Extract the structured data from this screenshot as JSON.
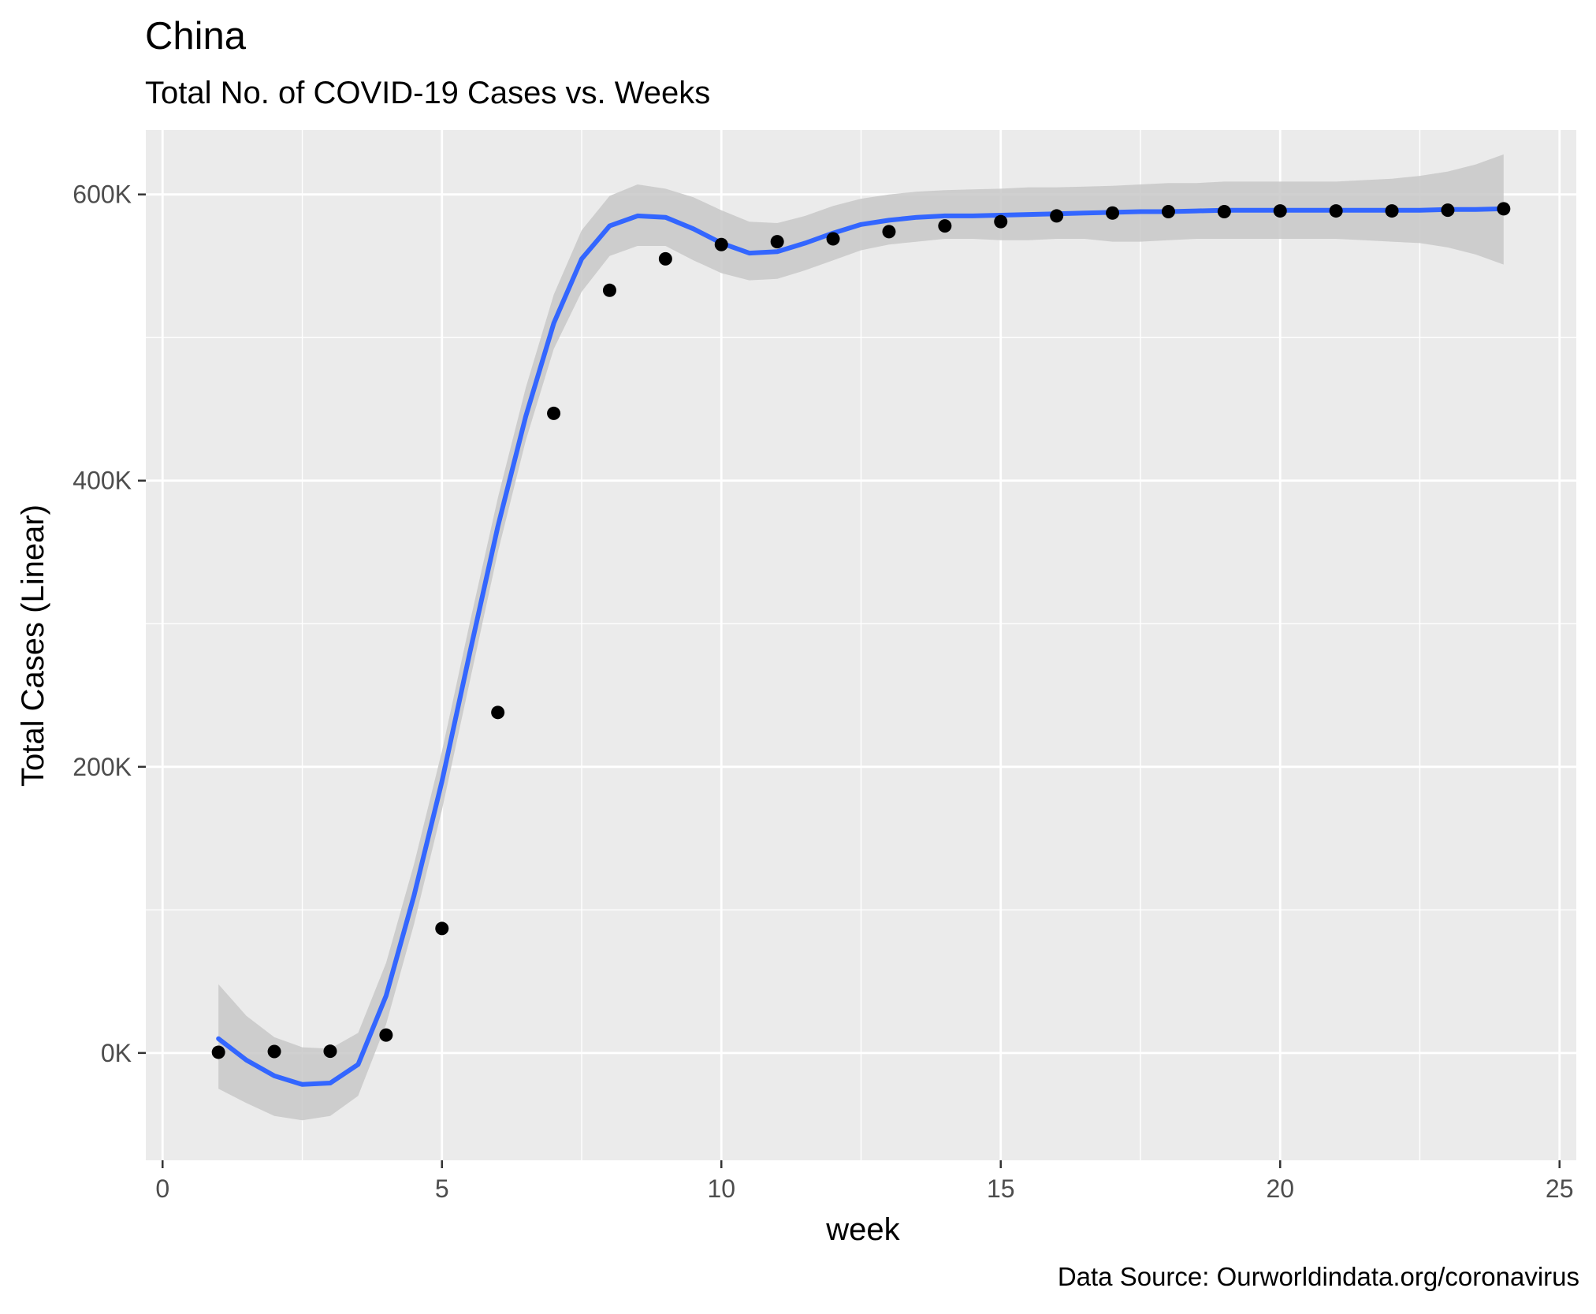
{
  "chart_data": {
    "type": "scatter",
    "title": "China",
    "subtitle": "Total No. of COVID-19 Cases vs. Weeks",
    "xlabel": "week",
    "ylabel": "Total Cases (Linear)",
    "caption": "Data Source: Ourworldindata.org/coronavirus",
    "xlim": [
      -0.3,
      25.3
    ],
    "ylim": [
      -75000,
      645000
    ],
    "x_ticks": [
      0,
      5,
      10,
      15,
      20,
      25
    ],
    "x_tick_labels": [
      "0",
      "5",
      "10",
      "15",
      "20",
      "25"
    ],
    "y_ticks": [
      0,
      200000,
      400000,
      600000
    ],
    "y_tick_labels": [
      "0K",
      "200K",
      "400K",
      "600K"
    ],
    "grid": true,
    "legend": "none",
    "colors": {
      "panel_bg": "#ebebeb",
      "grid": "#ffffff",
      "points": "#000000",
      "smooth_line": "#3366ff",
      "confidence_band": "#c8c8c8",
      "text": "#000000",
      "tick_text": "#4d4d4d"
    },
    "series": [
      {
        "kind": "points",
        "x": [
          1,
          2,
          3,
          4,
          5,
          6,
          7,
          8,
          9,
          10,
          11,
          12,
          13,
          14,
          15,
          16,
          17,
          18,
          19,
          20,
          21,
          22,
          23,
          24
        ],
        "y": [
          500,
          1000,
          1200,
          12500,
          87000,
          238000,
          447000,
          533000,
          555000,
          565000,
          567000,
          569000,
          574000,
          578000,
          581000,
          585000,
          587000,
          588000,
          588000,
          588500,
          588500,
          588500,
          589000,
          590000
        ]
      },
      {
        "kind": "smooth",
        "x": [
          1,
          1.5,
          2,
          2.5,
          3,
          3.5,
          4,
          4.5,
          5,
          5.5,
          6,
          6.5,
          7,
          7.5,
          8,
          8.5,
          9,
          9.5,
          10,
          10.5,
          11,
          11.5,
          12,
          12.5,
          13,
          13.5,
          14,
          14.5,
          15,
          15.5,
          16,
          16.5,
          17,
          17.5,
          18,
          18.5,
          19,
          19.5,
          20,
          20.5,
          21,
          21.5,
          22,
          22.5,
          23,
          23.5,
          24
        ],
        "y": [
          10000,
          -5000,
          -16000,
          -22000,
          -21000,
          -8000,
          40000,
          110000,
          190000,
          280000,
          368000,
          445000,
          510000,
          555000,
          578000,
          585000,
          584000,
          576000,
          566000,
          559000,
          560000,
          566000,
          573000,
          579000,
          582000,
          584000,
          585000,
          585000,
          585500,
          586000,
          586500,
          587000,
          587500,
          588000,
          588000,
          588500,
          589000,
          589000,
          589000,
          589000,
          589000,
          589000,
          589000,
          589000,
          589500,
          589500,
          590000
        ],
        "lower": [
          -25000,
          -35000,
          -44000,
          -47000,
          -44000,
          -30000,
          20000,
          90000,
          170000,
          260000,
          350000,
          428000,
          492000,
          532000,
          557000,
          564000,
          564000,
          554000,
          545000,
          540000,
          541000,
          547000,
          554000,
          561000,
          565000,
          567000,
          569000,
          569000,
          568000,
          568000,
          569000,
          569000,
          567000,
          567000,
          568000,
          569000,
          569000,
          569000,
          569000,
          569000,
          569000,
          568000,
          567000,
          566000,
          563000,
          558000,
          551000
        ],
        "upper": [
          48000,
          26000,
          11000,
          4000,
          3000,
          14000,
          63000,
          132000,
          211000,
          301000,
          388000,
          465000,
          530000,
          575000,
          599000,
          607000,
          604000,
          598000,
          589000,
          581000,
          580000,
          585000,
          592000,
          597000,
          600000,
          602000,
          603000,
          603500,
          604000,
          605000,
          605000,
          605500,
          606000,
          607000,
          608000,
          608000,
          609000,
          609000,
          609000,
          609000,
          609000,
          610000,
          611000,
          613000,
          616000,
          621000,
          628000
        ]
      }
    ]
  }
}
